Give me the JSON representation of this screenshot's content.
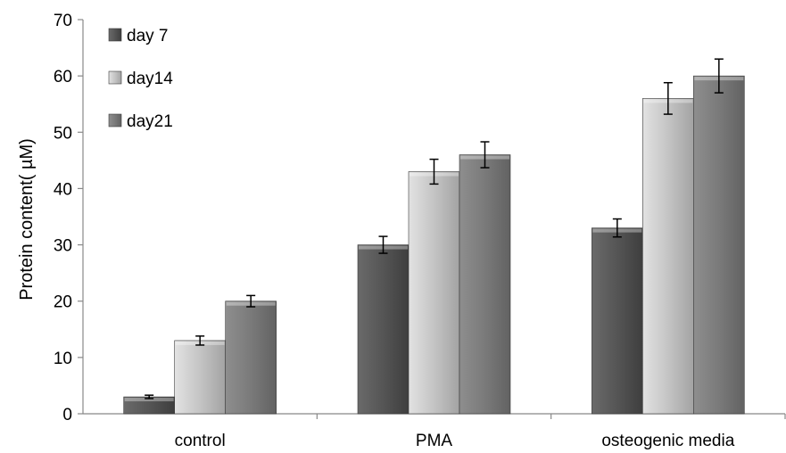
{
  "chart_data": {
    "type": "bar",
    "title": "",
    "xlabel": "",
    "ylabel": "Protein content( µM)",
    "ylim": [
      0,
      70
    ],
    "yticks": [
      0,
      10,
      20,
      30,
      40,
      50,
      60,
      70
    ],
    "grid": false,
    "legend_position": "top-left",
    "categories": [
      "control",
      "PMA",
      "osteogenic media"
    ],
    "series": [
      {
        "name": "day 7",
        "values": [
          3,
          30,
          33
        ],
        "errors": [
          0.3,
          1.5,
          1.6
        ],
        "color": "#555555"
      },
      {
        "name": "day14",
        "values": [
          13,
          43,
          56
        ],
        "errors": [
          0.8,
          2.2,
          2.8
        ],
        "color": "#bdbdbd"
      },
      {
        "name": "day21",
        "values": [
          20,
          46,
          60
        ],
        "errors": [
          1.0,
          2.3,
          3.0
        ],
        "color": "#7a7a7a"
      }
    ]
  }
}
